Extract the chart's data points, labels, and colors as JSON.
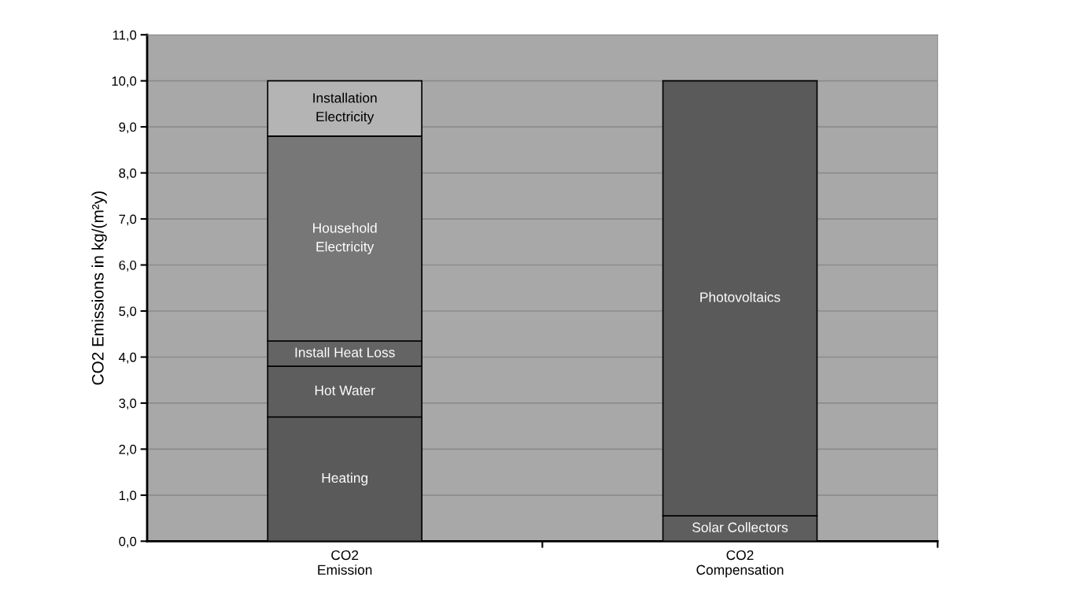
{
  "chart_data": {
    "type": "bar",
    "stacked": true,
    "ylabel": "CO2 Emissions in kg/(m²y)",
    "categories": [
      "CO2\nEmission",
      "CO2\nCompensation"
    ],
    "series": [
      {
        "name": "Heating",
        "color": "#5a5a5a",
        "values": [
          2.7,
          null
        ]
      },
      {
        "name": "Hot Water",
        "color": "#5e5e5e",
        "values": [
          1.1,
          null
        ]
      },
      {
        "name": "Install Heat Loss",
        "color": "#646464",
        "values": [
          0.55,
          null
        ]
      },
      {
        "name": "Household\nElectricity",
        "color": "#777777",
        "values": [
          4.45,
          null
        ]
      },
      {
        "name": "Installation\nElectricity",
        "color": "#b4b4b4",
        "values": [
          1.2,
          null
        ]
      },
      {
        "name": "Solar Collectors",
        "color": "#5e5e5e",
        "values": [
          null,
          0.55
        ]
      },
      {
        "name": "Photovoltaics",
        "color": "#5a5a5a",
        "values": [
          null,
          9.45
        ]
      }
    ],
    "ylim": [
      0,
      11
    ],
    "yticks": [
      {
        "value": 0,
        "label": "0,0"
      },
      {
        "value": 1,
        "label": "1,0"
      },
      {
        "value": 2,
        "label": "2,0"
      },
      {
        "value": 3,
        "label": "3,0"
      },
      {
        "value": 4,
        "label": "4,0"
      },
      {
        "value": 5,
        "label": "5,0"
      },
      {
        "value": 6,
        "label": "6,0"
      },
      {
        "value": 7,
        "label": "7,0"
      },
      {
        "value": 8,
        "label": "8,0"
      },
      {
        "value": 9,
        "label": "9,0"
      },
      {
        "value": 10,
        "label": "10,0"
      },
      {
        "value": 11,
        "label": "11,0"
      }
    ],
    "grid": "y",
    "legend": false
  }
}
